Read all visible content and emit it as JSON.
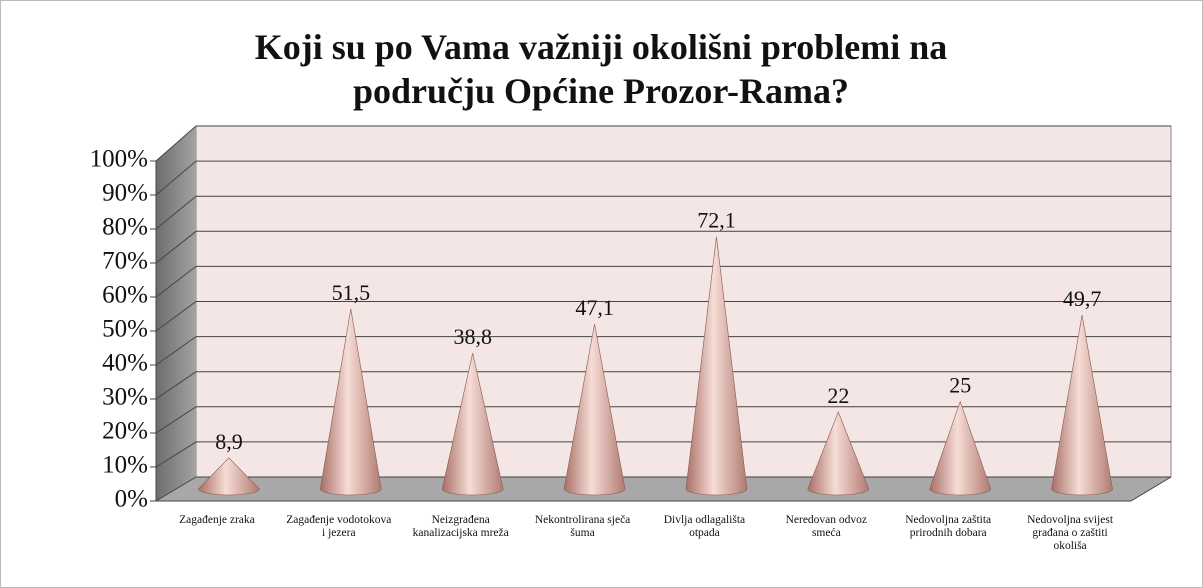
{
  "chart_data": {
    "type": "cone",
    "title": "Koji su po Vama važniji okolišni problemi na području Općine Prozor-Rama?",
    "categories": [
      "Zagađenje zraka",
      "Zagađenje vodotokova i jezera",
      "Neizgrađena kanalizacijska mreža",
      "Nekontrolirana sječa šuma",
      "Divlja odlagališta otpada",
      "Neredovan odvoz smeća",
      "Nedovoljna zaštita prirodnih dobara",
      "Nedovoljna svijest građana o zaštiti okoliša"
    ],
    "values": [
      8.9,
      51.5,
      38.8,
      47.1,
      72.1,
      22,
      25,
      49.7
    ],
    "value_labels": [
      "8,9",
      "51,5",
      "38,8",
      "47,1",
      "72,1",
      "22",
      "25",
      "49,7"
    ],
    "color": "#d4a198",
    "ylim": [
      0,
      100
    ],
    "yticks": [
      {
        "value": 0,
        "label": "0%"
      },
      {
        "value": 10,
        "label": "10%"
      },
      {
        "value": 20,
        "label": "20%"
      },
      {
        "value": 30,
        "label": "30%"
      },
      {
        "value": 40,
        "label": "40%"
      },
      {
        "value": 50,
        "label": "50%"
      },
      {
        "value": 60,
        "label": "60%"
      },
      {
        "value": 70,
        "label": "70%"
      },
      {
        "value": 80,
        "label": "80%"
      },
      {
        "value": 90,
        "label": "90%"
      },
      {
        "value": 100,
        "label": "100%"
      }
    ],
    "grid": true
  }
}
